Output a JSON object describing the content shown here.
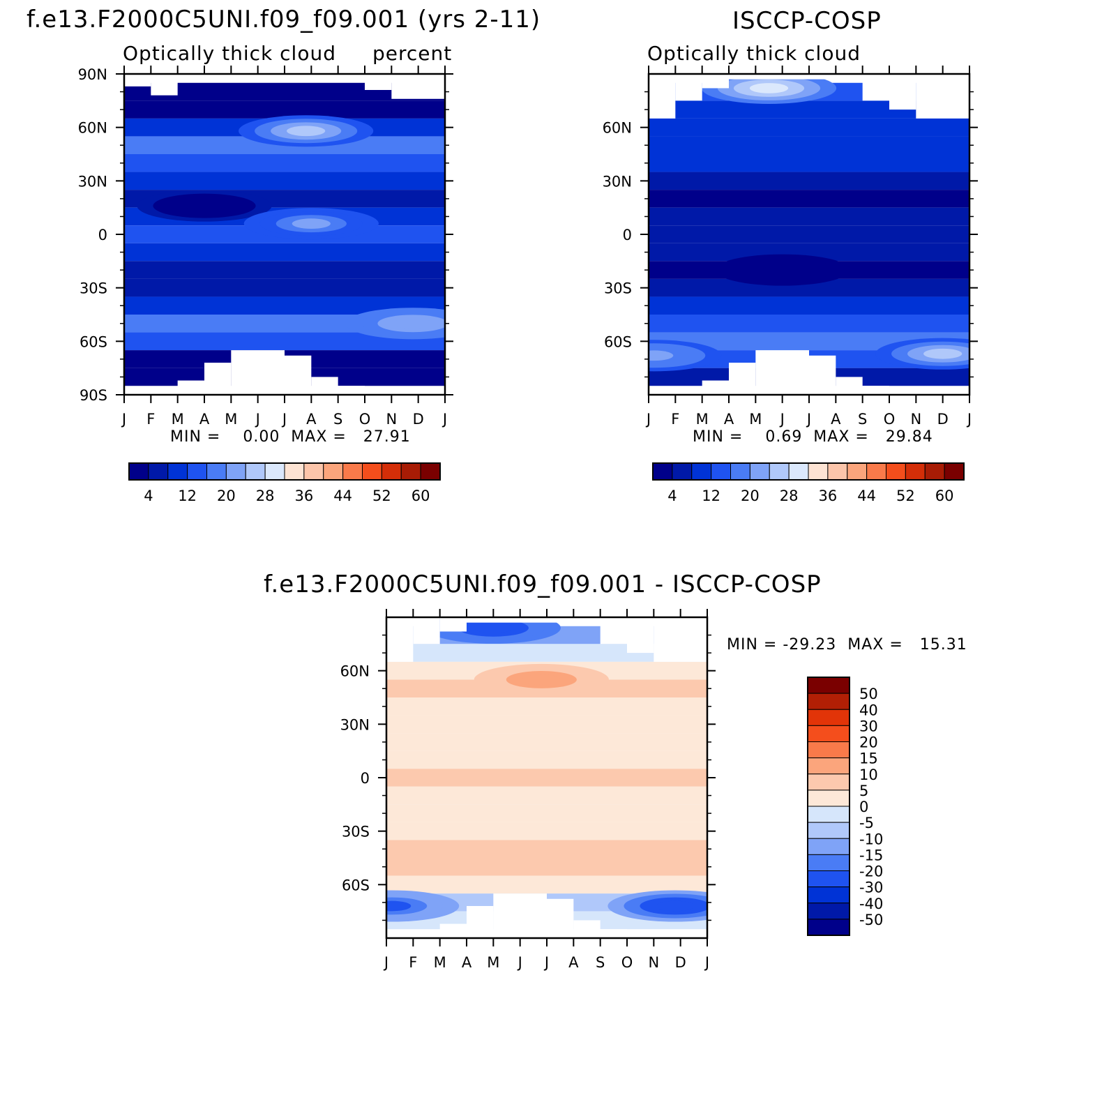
{
  "chart_data": [
    {
      "type": "heatmap",
      "id": "model",
      "title": "f.e13.F2000C5UNI.f09_f09.001 (yrs 2-11)",
      "subtitle_left": "Optically thick cloud",
      "subtitle_right": "percent",
      "x_ticks": [
        "J",
        "F",
        "M",
        "A",
        "M",
        "J",
        "J",
        "A",
        "S",
        "O",
        "N",
        "D",
        "J"
      ],
      "y_ticks": [
        "90N",
        "60N",
        "30N",
        "0",
        "30S",
        "60S",
        "90S"
      ],
      "y_values": [
        90,
        60,
        30,
        0,
        -30,
        -60,
        -90
      ],
      "ylim": [
        -90,
        90
      ],
      "stats": "MIN =    0.00  MAX =   27.91",
      "colorbar_labels": [
        "4",
        "12",
        "20",
        "28",
        "36",
        "44",
        "52",
        "60"
      ],
      "bands": [
        {
          "lat": 90,
          "value": null
        },
        {
          "lat": 80,
          "value": 2
        },
        {
          "lat": 70,
          "value": 3
        },
        {
          "lat": 60,
          "value": 10
        },
        {
          "lat": 50,
          "value": 16
        },
        {
          "lat": 40,
          "value": 12
        },
        {
          "lat": 30,
          "value": 8
        },
        {
          "lat": 20,
          "value": 5
        },
        {
          "lat": 10,
          "value": 10
        },
        {
          "lat": 0,
          "value": 12
        },
        {
          "lat": -10,
          "value": 8
        },
        {
          "lat": -20,
          "value": 5
        },
        {
          "lat": -30,
          "value": 6
        },
        {
          "lat": -40,
          "value": 10
        },
        {
          "lat": -50,
          "value": 17
        },
        {
          "lat": -60,
          "value": 12
        },
        {
          "lat": -70,
          "value": 3
        },
        {
          "lat": -80,
          "value": 2
        },
        {
          "lat": -90,
          "value": null
        }
      ],
      "blobs": [
        {
          "month": 6.8,
          "lat": 58,
          "value": 24,
          "name": "arctic-summer-max"
        },
        {
          "month": 3.0,
          "lat": 16,
          "value": 2,
          "name": "subtropic-min"
        },
        {
          "month": 7.0,
          "lat": 6,
          "value": 20,
          "name": "itcz-max"
        },
        {
          "month": 10.8,
          "lat": -50,
          "value": 22,
          "name": "southern-ocean-max"
        }
      ]
    },
    {
      "type": "heatmap",
      "id": "obs",
      "title": "ISCCP-COSP",
      "subtitle_left": "Optically thick cloud",
      "x_ticks": [
        "J",
        "F",
        "M",
        "A",
        "M",
        "J",
        "J",
        "A",
        "S",
        "O",
        "N",
        "D",
        "J"
      ],
      "y_ticks": [
        "60N",
        "30N",
        "0",
        "30S",
        "60S"
      ],
      "y_values": [
        60,
        30,
        0,
        -30,
        -60
      ],
      "ylim": [
        -90,
        90
      ],
      "stats": "MIN =    0.69  MAX =   29.84",
      "colorbar_labels": [
        "4",
        "12",
        "20",
        "28",
        "36",
        "44",
        "52",
        "60"
      ],
      "bands": [
        {
          "lat": 90,
          "value": null
        },
        {
          "lat": 80,
          "value": 14
        },
        {
          "lat": 70,
          "value": 10
        },
        {
          "lat": 60,
          "value": 9
        },
        {
          "lat": 50,
          "value": 10
        },
        {
          "lat": 40,
          "value": 8
        },
        {
          "lat": 30,
          "value": 6
        },
        {
          "lat": 20,
          "value": 2
        },
        {
          "lat": 10,
          "value": 6
        },
        {
          "lat": 0,
          "value": 7
        },
        {
          "lat": -10,
          "value": 4
        },
        {
          "lat": -20,
          "value": 2
        },
        {
          "lat": -30,
          "value": 5
        },
        {
          "lat": -40,
          "value": 8
        },
        {
          "lat": -50,
          "value": 12
        },
        {
          "lat": -60,
          "value": 16
        },
        {
          "lat": -70,
          "value": 12
        },
        {
          "lat": -80,
          "value": 7
        },
        {
          "lat": -90,
          "value": null
        }
      ],
      "blobs": [
        {
          "month": 4.5,
          "lat": 82,
          "value": 28,
          "name": "arctic-max"
        },
        {
          "month": 11.0,
          "lat": -67,
          "value": 26,
          "name": "antarctic-max"
        },
        {
          "month": 0.2,
          "lat": -68,
          "value": 22,
          "name": "antarctic-west-max"
        },
        {
          "month": 5.0,
          "lat": -20,
          "value": 1,
          "name": "subtropic-min"
        }
      ]
    },
    {
      "type": "heatmap",
      "id": "diff",
      "title": "f.e13.F2000C5UNI.f09_f09.001 - ISCCP-COSP",
      "x_ticks": [
        "J",
        "F",
        "M",
        "A",
        "M",
        "J",
        "J",
        "A",
        "S",
        "O",
        "N",
        "D",
        "J"
      ],
      "y_ticks": [
        "60N",
        "30N",
        "0",
        "30S",
        "60S"
      ],
      "y_values": [
        60,
        30,
        0,
        -30,
        -60
      ],
      "ylim": [
        -90,
        90
      ],
      "stats": "MIN = -29.23  MAX =   15.31",
      "colorbar_labels": [
        "50",
        "40",
        "30",
        "20",
        "15",
        "10",
        "5",
        "0",
        "-5",
        "-10",
        "-15",
        "-20",
        "-30",
        "-40",
        "-50"
      ],
      "bands": [
        {
          "lat": 90,
          "value": null
        },
        {
          "lat": 80,
          "value": -12
        },
        {
          "lat": 70,
          "value": -4
        },
        {
          "lat": 60,
          "value": 4
        },
        {
          "lat": 50,
          "value": 8
        },
        {
          "lat": 40,
          "value": 4
        },
        {
          "lat": 30,
          "value": 3
        },
        {
          "lat": 20,
          "value": 3
        },
        {
          "lat": 10,
          "value": 4
        },
        {
          "lat": 0,
          "value": 6
        },
        {
          "lat": -10,
          "value": 3
        },
        {
          "lat": -20,
          "value": 2
        },
        {
          "lat": -30,
          "value": 3
        },
        {
          "lat": -40,
          "value": 6
        },
        {
          "lat": -50,
          "value": 6
        },
        {
          "lat": -60,
          "value": 2
        },
        {
          "lat": -70,
          "value": -8
        },
        {
          "lat": -80,
          "value": -3
        },
        {
          "lat": -90,
          "value": null
        }
      ],
      "blobs": [
        {
          "month": 5.8,
          "lat": 55,
          "value": 14,
          "name": "arctic-positive-max"
        },
        {
          "month": 4.0,
          "lat": 84,
          "value": -25,
          "name": "arctic-negative-min"
        },
        {
          "month": 10.8,
          "lat": -72,
          "value": -28,
          "name": "antarctic-negative-min"
        },
        {
          "month": 0.2,
          "lat": -72,
          "value": -22,
          "name": "antarctic-west-min"
        }
      ]
    }
  ]
}
